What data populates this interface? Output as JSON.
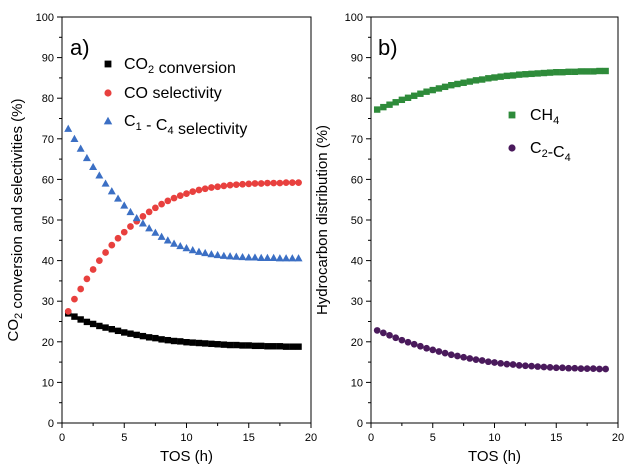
{
  "chart_data": [
    {
      "type": "scatter",
      "panel_label": "a)",
      "xlabel": "TOS (h)",
      "ylabel": {
        "pre": "CO",
        "sub": "2",
        "post": " conversion and selectivities (%)"
      },
      "xlim": [
        0,
        20
      ],
      "ylim": [
        0,
        100
      ],
      "xticks": [
        "0",
        "5",
        "10",
        "15",
        "20"
      ],
      "yticks": [
        "0",
        "10",
        "20",
        "30",
        "40",
        "50",
        "60",
        "70",
        "80",
        "90",
        "100"
      ],
      "legend_position": "top-right",
      "series": [
        {
          "legend": [
            {
              "t": "CO"
            },
            {
              "t": "2",
              "sub": true
            },
            {
              "t": " conversion"
            }
          ],
          "marker": "square",
          "color": "#000000",
          "points": [
            [
              0.5,
              27.0
            ],
            [
              1.0,
              26.2
            ],
            [
              1.5,
              25.5
            ],
            [
              2.0,
              24.9
            ],
            [
              2.5,
              24.4
            ],
            [
              3.0,
              23.9
            ],
            [
              3.5,
              23.5
            ],
            [
              4.0,
              23.1
            ],
            [
              4.5,
              22.7
            ],
            [
              5.0,
              22.3
            ],
            [
              5.5,
              22.0
            ],
            [
              6.0,
              21.7
            ],
            [
              6.5,
              21.4
            ],
            [
              7.0,
              21.1
            ],
            [
              7.5,
              20.9
            ],
            [
              8.0,
              20.6
            ],
            [
              8.5,
              20.4
            ],
            [
              9.0,
              20.2
            ],
            [
              9.5,
              20.1
            ],
            [
              10.0,
              19.9
            ],
            [
              10.5,
              19.8
            ],
            [
              11.0,
              19.7
            ],
            [
              11.5,
              19.6
            ],
            [
              12.0,
              19.5
            ],
            [
              12.5,
              19.4
            ],
            [
              13.0,
              19.3
            ],
            [
              13.5,
              19.2
            ],
            [
              14.0,
              19.2
            ],
            [
              14.5,
              19.1
            ],
            [
              15.0,
              19.1
            ],
            [
              15.5,
              19.0
            ],
            [
              16.0,
              19.0
            ],
            [
              16.5,
              18.9
            ],
            [
              17.0,
              18.9
            ],
            [
              17.5,
              18.9
            ],
            [
              18.0,
              18.8
            ],
            [
              18.5,
              18.8
            ],
            [
              19.0,
              18.8
            ]
          ]
        },
        {
          "legend": [
            {
              "t": "CO selectivity"
            }
          ],
          "marker": "circle",
          "color": "#e8403e",
          "points": [
            [
              0.5,
              27.5
            ],
            [
              1.0,
              30.5
            ],
            [
              1.5,
              33.0
            ],
            [
              2.0,
              35.5
            ],
            [
              2.5,
              37.8
            ],
            [
              3.0,
              40.0
            ],
            [
              3.5,
              42.0
            ],
            [
              4.0,
              43.8
            ],
            [
              4.5,
              45.5
            ],
            [
              5.0,
              47.0
            ],
            [
              5.5,
              48.4
            ],
            [
              6.0,
              49.7
            ],
            [
              6.5,
              50.9
            ],
            [
              7.0,
              52.0
            ],
            [
              7.5,
              53.0
            ],
            [
              8.0,
              53.9
            ],
            [
              8.5,
              54.7
            ],
            [
              9.0,
              55.4
            ],
            [
              9.5,
              56.0
            ],
            [
              10.0,
              56.5
            ],
            [
              10.5,
              57.0
            ],
            [
              11.0,
              57.4
            ],
            [
              11.5,
              57.7
            ],
            [
              12.0,
              58.0
            ],
            [
              12.5,
              58.2
            ],
            [
              13.0,
              58.4
            ],
            [
              13.5,
              58.6
            ],
            [
              14.0,
              58.7
            ],
            [
              14.5,
              58.8
            ],
            [
              15.0,
              58.9
            ],
            [
              15.5,
              59.0
            ],
            [
              16.0,
              59.0
            ],
            [
              16.5,
              59.1
            ],
            [
              17.0,
              59.1
            ],
            [
              17.5,
              59.1
            ],
            [
              18.0,
              59.2
            ],
            [
              18.5,
              59.2
            ],
            [
              19.0,
              59.2
            ]
          ]
        },
        {
          "legend": [
            {
              "t": "C"
            },
            {
              "t": "1",
              "sub": true
            },
            {
              "t": " - C"
            },
            {
              "t": "4",
              "sub": true
            },
            {
              "t": " selectivity"
            }
          ],
          "marker": "triangle",
          "color": "#3b6fc4",
          "points": [
            [
              0.5,
              72.5
            ],
            [
              1.0,
              70.0
            ],
            [
              1.5,
              67.6
            ],
            [
              2.0,
              65.3
            ],
            [
              2.5,
              63.1
            ],
            [
              3.0,
              61.0
            ],
            [
              3.5,
              59.0
            ],
            [
              4.0,
              57.1
            ],
            [
              4.5,
              55.3
            ],
            [
              5.0,
              53.6
            ],
            [
              5.5,
              52.0
            ],
            [
              6.0,
              50.5
            ],
            [
              6.5,
              49.2
            ],
            [
              7.0,
              48.0
            ],
            [
              7.5,
              46.9
            ],
            [
              8.0,
              45.9
            ],
            [
              8.5,
              45.0
            ],
            [
              9.0,
              44.2
            ],
            [
              9.5,
              43.6
            ],
            [
              10.0,
              43.1
            ],
            [
              10.5,
              42.6
            ],
            [
              11.0,
              42.2
            ],
            [
              11.5,
              41.9
            ],
            [
              12.0,
              41.6
            ],
            [
              12.5,
              41.4
            ],
            [
              13.0,
              41.2
            ],
            [
              13.5,
              41.1
            ],
            [
              14.0,
              41.0
            ],
            [
              14.5,
              40.9
            ],
            [
              15.0,
              40.8
            ],
            [
              15.5,
              40.8
            ],
            [
              16.0,
              40.7
            ],
            [
              16.5,
              40.7
            ],
            [
              17.0,
              40.7
            ],
            [
              17.5,
              40.6
            ],
            [
              18.0,
              40.6
            ],
            [
              18.5,
              40.6
            ],
            [
              19.0,
              40.6
            ]
          ]
        }
      ]
    },
    {
      "type": "scatter",
      "panel_label": "b)",
      "xlabel": "TOS (h)",
      "ylabel": {
        "pre": "Hydrocarbon distribution (%)",
        "sub": "",
        "post": ""
      },
      "xlim": [
        0,
        20
      ],
      "ylim": [
        0,
        100
      ],
      "xticks": [
        "0",
        "5",
        "10",
        "15",
        "20"
      ],
      "yticks": [
        "0",
        "10",
        "20",
        "30",
        "40",
        "50",
        "60",
        "70",
        "80",
        "90",
        "100"
      ],
      "legend_position": "top-right",
      "series": [
        {
          "legend": [
            {
              "t": "CH"
            },
            {
              "t": "4",
              "sub": true
            }
          ],
          "marker": "square",
          "color": "#2e8b3a",
          "points": [
            [
              0.5,
              77.2
            ],
            [
              1.0,
              77.8
            ],
            [
              1.5,
              78.4
            ],
            [
              2.0,
              79.0
            ],
            [
              2.5,
              79.6
            ],
            [
              3.0,
              80.1
            ],
            [
              3.5,
              80.6
            ],
            [
              4.0,
              81.1
            ],
            [
              4.5,
              81.6
            ],
            [
              5.0,
              82.0
            ],
            [
              5.5,
              82.4
            ],
            [
              6.0,
              82.8
            ],
            [
              6.5,
              83.2
            ],
            [
              7.0,
              83.5
            ],
            [
              7.5,
              83.8
            ],
            [
              8.0,
              84.1
            ],
            [
              8.5,
              84.4
            ],
            [
              9.0,
              84.6
            ],
            [
              9.5,
              84.9
            ],
            [
              10.0,
              85.1
            ],
            [
              10.5,
              85.3
            ],
            [
              11.0,
              85.5
            ],
            [
              11.5,
              85.6
            ],
            [
              12.0,
              85.8
            ],
            [
              12.5,
              85.9
            ],
            [
              13.0,
              86.0
            ],
            [
              13.5,
              86.1
            ],
            [
              14.0,
              86.2
            ],
            [
              14.5,
              86.3
            ],
            [
              15.0,
              86.4
            ],
            [
              15.5,
              86.4
            ],
            [
              16.0,
              86.5
            ],
            [
              16.5,
              86.5
            ],
            [
              17.0,
              86.6
            ],
            [
              17.5,
              86.6
            ],
            [
              18.0,
              86.6
            ],
            [
              18.5,
              86.7
            ],
            [
              19.0,
              86.7
            ]
          ]
        },
        {
          "legend": [
            {
              "t": "C"
            },
            {
              "t": "2",
              "sub": true
            },
            {
              "t": "-C"
            },
            {
              "t": "4",
              "sub": true
            }
          ],
          "marker": "circle",
          "color": "#4a1a5c",
          "points": [
            [
              0.5,
              22.8
            ],
            [
              1.0,
              22.2
            ],
            [
              1.5,
              21.6
            ],
            [
              2.0,
              21.0
            ],
            [
              2.5,
              20.4
            ],
            [
              3.0,
              19.9
            ],
            [
              3.5,
              19.4
            ],
            [
              4.0,
              18.9
            ],
            [
              4.5,
              18.4
            ],
            [
              5.0,
              18.0
            ],
            [
              5.5,
              17.6
            ],
            [
              6.0,
              17.2
            ],
            [
              6.5,
              16.8
            ],
            [
              7.0,
              16.5
            ],
            [
              7.5,
              16.2
            ],
            [
              8.0,
              15.9
            ],
            [
              8.5,
              15.6
            ],
            [
              9.0,
              15.4
            ],
            [
              9.5,
              15.1
            ],
            [
              10.0,
              14.9
            ],
            [
              10.5,
              14.7
            ],
            [
              11.0,
              14.5
            ],
            [
              11.5,
              14.4
            ],
            [
              12.0,
              14.2
            ],
            [
              12.5,
              14.1
            ],
            [
              13.0,
              14.0
            ],
            [
              13.5,
              13.9
            ],
            [
              14.0,
              13.8
            ],
            [
              14.5,
              13.7
            ],
            [
              15.0,
              13.6
            ],
            [
              15.5,
              13.6
            ],
            [
              16.0,
              13.5
            ],
            [
              16.5,
              13.5
            ],
            [
              17.0,
              13.4
            ],
            [
              17.5,
              13.4
            ],
            [
              18.0,
              13.4
            ],
            [
              18.5,
              13.3
            ],
            [
              19.0,
              13.3
            ]
          ]
        }
      ]
    }
  ]
}
